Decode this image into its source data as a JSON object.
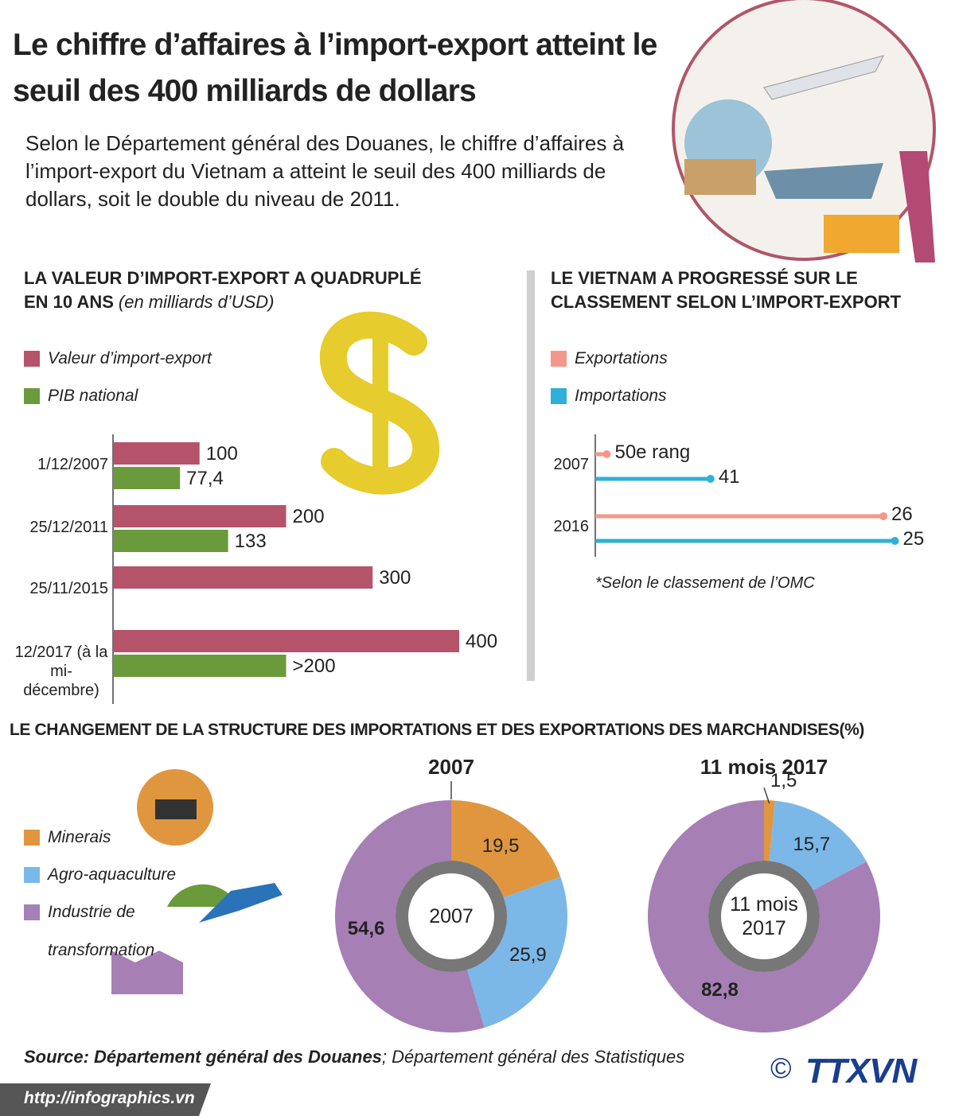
{
  "header": {
    "title": "Le chiffre d’affaires à l’import-export atteint le seuil des 400 milliards de dollars",
    "intro": "Selon le Département général des Douanes, le chiffre d’affaires à l’import-export du Vietnam a atteint le seuil des 400 milliards de dollars,  soit le double du niveau de 2011."
  },
  "chart_data": [
    {
      "type": "hbar",
      "title": "LA VALEUR D’IMPORT-EXPORT A QUADRUPLÉ EN 10 ANS",
      "subtitle": "(en milliards d’USD)",
      "categories": [
        "1/12/2007",
        "25/12/2011",
        "25/11/2015",
        "12/2017 (à la mi-décembre)"
      ],
      "series": [
        {
          "name": "Valeur d’import-export",
          "color": "#b5536a",
          "values": [
            100,
            200,
            300,
            400
          ]
        },
        {
          "name": "PIB national",
          "color": "#6a9a3b",
          "values": [
            77.4,
            133,
            null,
            200
          ],
          "value_labels": [
            "77,4",
            "133",
            null,
            ">200"
          ]
        }
      ],
      "xlim": [
        0,
        400
      ]
    },
    {
      "type": "rank",
      "title": "LE VIETNAM A PROGRESSÉ SUR LE CLASSEMENT SELON L’IMPORT-EXPORT",
      "categories": [
        "2007",
        "2016"
      ],
      "series": [
        {
          "name": "Exportations",
          "color": "#f4978a",
          "values": [
            50,
            26
          ],
          "value_labels": [
            "50e rang",
            "26"
          ]
        },
        {
          "name": "Importations",
          "color": "#2fb0d7",
          "values": [
            41,
            25
          ]
        }
      ],
      "xlim": [
        51,
        24
      ],
      "note": "*Selon le classement de l’OMC"
    },
    {
      "type": "donut",
      "title": "2007",
      "categories": [
        "Minerais",
        "Agro-aquaculture",
        "Industrie de transformation"
      ],
      "colors": [
        "#e0963f",
        "#7bb8e8",
        "#a67fb5"
      ],
      "values": [
        19.5,
        25.9,
        54.6
      ],
      "value_labels": [
        "19,5",
        "25,9",
        "54,6"
      ]
    },
    {
      "type": "donut",
      "title": "11 mois 2017",
      "categories": [
        "Minerais",
        "Agro-aquaculture",
        "Industrie de transformation"
      ],
      "colors": [
        "#e0963f",
        "#7bb8e8",
        "#a67fb5"
      ],
      "values": [
        1.5,
        15.7,
        82.8
      ],
      "value_labels": [
        "1,5",
        "15,7",
        "82,8"
      ]
    }
  ],
  "structure_title": "LE CHANGEMENT DE LA STRUCTURE DES IMPORTATIONS ET DES EXPORTATIONS DES MARCHANDISES(%)",
  "source": {
    "bold": "Source: Département général des Douanes",
    "rest": "; Département général des Statistiques"
  },
  "footer": {
    "url": "http://infographics.vn",
    "copyright": "©",
    "logo": "TTXVN"
  }
}
